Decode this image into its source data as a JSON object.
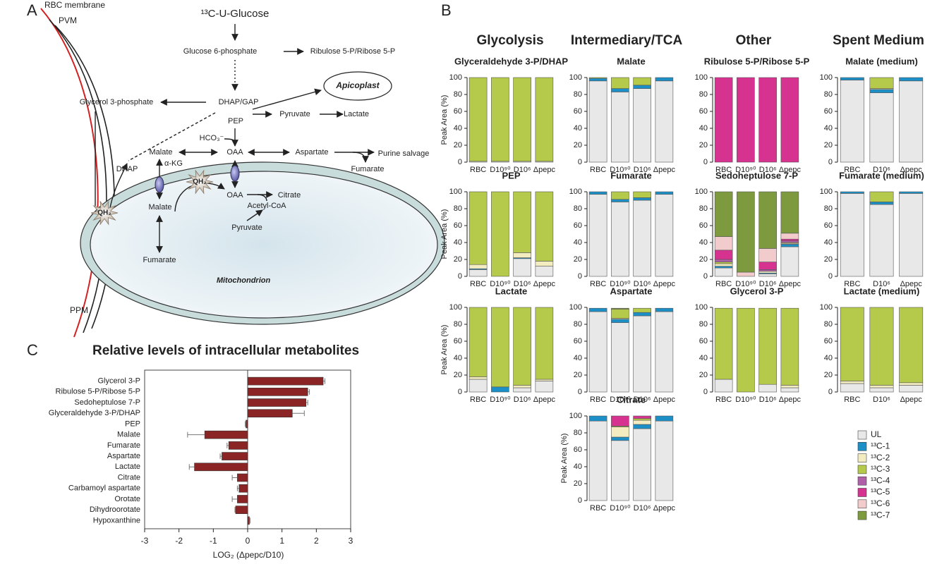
{
  "panel_labels": [
    "A",
    "B",
    "C"
  ],
  "sections": [
    "Glycolysis",
    "Intermediary/TCA",
    "Other",
    "Spent Medium"
  ],
  "diagram": {
    "labels": [
      "¹³C-U-Glucose",
      "Glucose 6-phosphate",
      "Ribulose 5-P/Ribose 5-P",
      "DHAP/GAP",
      "Glycerol 3-phosphate",
      "Apicoplast",
      "PEP",
      "HCO₃⁻",
      "Pyruvate",
      "Lactate",
      "DHAP",
      "Malate",
      "OAA",
      "Aspartate",
      "Purine salvage",
      "Fumarate",
      "α-KG",
      "QH₂",
      "QH₂",
      "Malate",
      "OAA",
      "Citrate",
      "Acetyl-CoA",
      "Pyruvate",
      "Fumarate",
      "Mitochondrion",
      "RBC membrane",
      "PVM",
      "PPM"
    ]
  },
  "legend": [
    {
      "name": "UL",
      "color": "#e8e8e8"
    },
    {
      "name": "¹³C-1",
      "color": "#1b8fc6"
    },
    {
      "name": "¹³C-2",
      "color": "#f3ecc0"
    },
    {
      "name": "¹³C-3",
      "color": "#b5c94a"
    },
    {
      "name": "¹³C-4",
      "color": "#b060a8"
    },
    {
      "name": "¹³C-5",
      "color": "#d63290"
    },
    {
      "name": "¹³C-6",
      "color": "#f2cccc"
    },
    {
      "name": "¹³C-7",
      "color": "#7d9a3e"
    }
  ],
  "chart_data": [
    {
      "type": "stacked_bar",
      "title": "Glyceraldehyde 3-P/DHAP",
      "y_label": "Peak Area (%)",
      "categories": [
        "RBC",
        "D10⁹⁰",
        "D10⁶",
        "Δpepc"
      ],
      "values": [
        [
          1,
          0,
          0,
          99,
          0,
          0,
          0,
          0
        ],
        [
          1,
          0,
          0,
          99,
          0,
          0,
          0,
          0
        ],
        [
          1,
          0,
          0,
          99,
          0,
          0,
          0,
          0
        ],
        [
          1,
          0,
          0,
          99,
          0,
          0,
          0,
          0
        ]
      ],
      "ylim": [
        0,
        100
      ],
      "yticks": [
        0,
        20,
        40,
        60,
        80,
        100
      ]
    },
    {
      "type": "stacked_bar",
      "title": "Malate",
      "categories": [
        "RBC",
        "D10⁹⁰",
        "D10⁶",
        "Δpepc"
      ],
      "values": [
        [
          96,
          3,
          0,
          1,
          0,
          0,
          0,
          0
        ],
        [
          83,
          4,
          0,
          13,
          0,
          0,
          0,
          0
        ],
        [
          87,
          4,
          0,
          9,
          0,
          0,
          0,
          0
        ],
        [
          96,
          4,
          0,
          0,
          0,
          0,
          0,
          0
        ]
      ],
      "ylim": [
        0,
        100
      ],
      "yticks": [
        0,
        20,
        40,
        60,
        80,
        100
      ]
    },
    {
      "type": "stacked_bar",
      "title": "Ribulose 5-P/Ribose 5-P",
      "categories": [
        "RBC",
        "D10⁹⁰",
        "D10⁶",
        "Δpepc"
      ],
      "values": [
        [
          0,
          0,
          0,
          0,
          0,
          100,
          0,
          0
        ],
        [
          0,
          0,
          0,
          0,
          0,
          100,
          0,
          0
        ],
        [
          0,
          0,
          0,
          0,
          0,
          100,
          0,
          0
        ],
        [
          0,
          0,
          0,
          0,
          0,
          100,
          0,
          0
        ]
      ],
      "ylim": [
        0,
        100
      ],
      "yticks": [
        0,
        20,
        40,
        60,
        80,
        100
      ]
    },
    {
      "type": "stacked_bar",
      "title": "Malate (medium)",
      "categories": [
        "RBC",
        "D10⁶",
        "Δpepc"
      ],
      "values": [
        [
          97,
          3,
          0,
          0,
          0,
          0,
          0,
          0
        ],
        [
          82,
          4,
          1,
          13,
          0,
          0,
          0,
          0
        ],
        [
          96,
          4,
          0,
          0,
          0,
          0,
          0,
          0
        ]
      ],
      "ylim": [
        0,
        100
      ],
      "yticks": [
        0,
        20,
        40,
        60,
        80,
        100
      ]
    },
    {
      "type": "stacked_bar",
      "title": "PEP",
      "y_label": "Peak Area (%)",
      "categories": [
        "RBC",
        "D10⁹⁰",
        "D10⁶",
        "Δpepc"
      ],
      "values": [
        [
          8,
          1,
          5,
          86,
          0,
          0,
          0,
          0
        ],
        [
          0,
          0,
          0,
          100,
          0,
          0,
          0,
          0
        ],
        [
          21,
          1,
          6,
          72,
          0,
          0,
          0,
          0
        ],
        [
          12,
          0,
          6,
          82,
          0,
          0,
          0,
          0
        ]
      ],
      "ylim": [
        0,
        100
      ],
      "yticks": [
        0,
        20,
        40,
        60,
        80,
        100
      ]
    },
    {
      "type": "stacked_bar",
      "title": "Fumarate",
      "categories": [
        "RBC",
        "D10⁹⁰",
        "D10⁶",
        "Δpepc"
      ],
      "values": [
        [
          97,
          3,
          0,
          0,
          0,
          0,
          0,
          0
        ],
        [
          88,
          3,
          0,
          9,
          0,
          0,
          0,
          0
        ],
        [
          90,
          3,
          0,
          7,
          0,
          0,
          0,
          0
        ],
        [
          97,
          3,
          0,
          0,
          0,
          0,
          0,
          0
        ]
      ],
      "ylim": [
        0,
        100
      ],
      "yticks": [
        0,
        20,
        40,
        60,
        80,
        100
      ]
    },
    {
      "type": "stacked_bar",
      "title": "Sedoheptulose 7-P",
      "categories": [
        "RBC",
        "D10⁹⁰",
        "D10⁶",
        "Δpepc"
      ],
      "values": [
        [
          10,
          2,
          3,
          2,
          3,
          11,
          16,
          53
        ],
        [
          0,
          0,
          0,
          0,
          0,
          0,
          5,
          95
        ],
        [
          3,
          1,
          2,
          0,
          2,
          9,
          16,
          67
        ],
        [
          35,
          3,
          1,
          1,
          2,
          2,
          7,
          49
        ]
      ],
      "ylim": [
        0,
        100
      ],
      "yticks": [
        0,
        20,
        40,
        60,
        80,
        100
      ]
    },
    {
      "type": "stacked_bar",
      "title": "Fumarate (medium)",
      "categories": [
        "RBC",
        "D10⁶",
        "Δpepc"
      ],
      "values": [
        [
          98,
          2,
          0,
          0,
          0,
          0,
          0,
          0
        ],
        [
          85,
          3,
          0,
          12,
          0,
          0,
          0,
          0
        ],
        [
          98,
          2,
          0,
          0,
          0,
          0,
          0,
          0
        ]
      ],
      "ylim": [
        0,
        100
      ],
      "yticks": [
        0,
        20,
        40,
        60,
        80,
        100
      ]
    },
    {
      "type": "stacked_bar",
      "title": "Lactate",
      "y_label": "Peak Area (%)",
      "categories": [
        "RBC",
        "D10⁹⁰",
        "D10⁶",
        "Δpepc"
      ],
      "values": [
        [
          15,
          0,
          3,
          82,
          0,
          0,
          0,
          0
        ],
        [
          0,
          6,
          0,
          94,
          0,
          0,
          0,
          0
        ],
        [
          5,
          0,
          3,
          92,
          0,
          0,
          0,
          0
        ],
        [
          13,
          0,
          2,
          85,
          0,
          0,
          0,
          0
        ]
      ],
      "ylim": [
        0,
        100
      ],
      "yticks": [
        0,
        20,
        40,
        60,
        80,
        100
      ]
    },
    {
      "type": "stacked_bar",
      "title": "Aspartate",
      "categories": [
        "RBC",
        "D10⁹⁰",
        "D10⁶",
        "Δpepc"
      ],
      "values": [
        [
          95,
          4,
          0,
          0,
          0,
          0,
          0,
          0
        ],
        [
          82,
          4,
          1,
          11,
          0,
          0,
          0,
          1
        ],
        [
          90,
          4,
          0,
          5,
          0,
          0,
          0,
          0
        ],
        [
          95,
          4,
          0,
          0,
          0,
          0,
          0,
          0
        ]
      ],
      "ylim": [
        0,
        100
      ],
      "yticks": [
        0,
        20,
        40,
        60,
        80,
        100
      ]
    },
    {
      "type": "stacked_bar",
      "title": "Glycerol 3-P",
      "categories": [
        "RBC",
        "D10⁹⁰",
        "D10⁶",
        "Δpepc"
      ],
      "values": [
        [
          15,
          0,
          0,
          84,
          0,
          0,
          0,
          0
        ],
        [
          0,
          0,
          0,
          99,
          0,
          0,
          0,
          0
        ],
        [
          9,
          0,
          0,
          90,
          0,
          0,
          0,
          0
        ],
        [
          5,
          0,
          3,
          91,
          0,
          0,
          0,
          0
        ]
      ],
      "ylim": [
        0,
        100
      ],
      "yticks": [
        0,
        20,
        40,
        60,
        80,
        100
      ]
    },
    {
      "type": "stacked_bar",
      "title": "Lactate (medium)",
      "categories": [
        "RBC",
        "D10⁶",
        "Δpepc"
      ],
      "values": [
        [
          10,
          0,
          3,
          87,
          0,
          0,
          0,
          0
        ],
        [
          5,
          0,
          3,
          92,
          0,
          0,
          0,
          0
        ],
        [
          8,
          0,
          3,
          89,
          0,
          0,
          0,
          0
        ]
      ],
      "ylim": [
        0,
        100
      ],
      "yticks": [
        0,
        20,
        40,
        60,
        80,
        100
      ]
    },
    {
      "type": "stacked_bar",
      "title": "Citrate",
      "y_label": "Peak Area (%)",
      "categories": [
        "RBC",
        "D10⁹⁰",
        "D10⁶",
        "Δpepc"
      ],
      "values": [
        [
          94,
          6,
          0,
          0,
          0,
          0,
          0,
          0
        ],
        [
          71,
          4,
          12,
          1,
          0,
          12,
          0,
          0
        ],
        [
          85,
          5,
          5,
          2,
          0,
          3,
          0,
          0
        ],
        [
          94,
          6,
          0,
          0,
          0,
          0,
          0,
          0
        ]
      ],
      "ylim": [
        0,
        100
      ],
      "yticks": [
        0,
        20,
        40,
        60,
        80,
        100
      ]
    },
    {
      "type": "hbar",
      "title": "Relative levels of intracellular metabolites",
      "x_label": "LOG₂ (Δpepc/D10)",
      "color": "#8b2525",
      "categories": [
        "Glycerol 3-P",
        "Ribulose 5-P/Ribose 5-P",
        "Sedoheptulose 7-P",
        "Glyceraldehyde 3-P/DHAP",
        "PEP",
        "Malate",
        "Fumarate",
        "Aspartate",
        "Lactate",
        "Citrate",
        "Carbamoyl aspartate",
        "Orotate",
        "Dihydroorotate",
        "Hypoxanthine"
      ],
      "values": [
        2.2,
        1.75,
        1.7,
        1.3,
        -0.05,
        -1.25,
        -0.55,
        -0.75,
        -1.55,
        -0.3,
        -0.25,
        -0.3,
        -0.35,
        0.05
      ],
      "errors": [
        0.05,
        0.05,
        0.05,
        0.35,
        0.02,
        0.5,
        0.05,
        0.05,
        0.15,
        0.15,
        0.05,
        0.15,
        0.02,
        0.02
      ],
      "xlim": [
        -3,
        3
      ],
      "xticks": [
        -3,
        -2,
        -1,
        0,
        1,
        2,
        3
      ]
    }
  ]
}
